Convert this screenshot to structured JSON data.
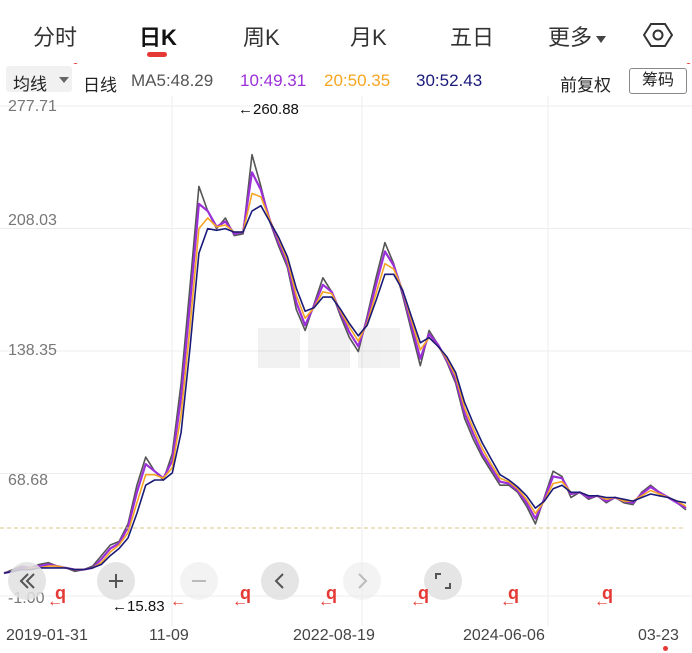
{
  "tabs": [
    {
      "label": "分时"
    },
    {
      "label": "日K"
    },
    {
      "label": "周K"
    },
    {
      "label": "月K"
    },
    {
      "label": "五日"
    },
    {
      "label": "更多"
    }
  ],
  "active_tab": "日K",
  "ma_bar": {
    "avg_label": "均线",
    "period": "日线",
    "ma5": "MA5:48.29",
    "ma10": "10:49.31",
    "ma20": "20:50.35",
    "ma30": "30:52.43",
    "adjust": "前复权",
    "chip": "筹码"
  },
  "colors": {
    "ma5": "#555555",
    "ma10": "#9b30d9",
    "ma20": "#f5a623",
    "ma30": "#1a1a7a",
    "price": "#222222",
    "accent": "#e53935"
  },
  "price_axis": [
    "277.71",
    "208.03",
    "138.35",
    "68.68",
    "-1.00"
  ],
  "annotations": {
    "high": "←260.88",
    "low": "←15.83"
  },
  "marker_glyph": "q",
  "dates": [
    "2019-01-31",
    "11-09",
    "2022-08-19",
    "2024-06-06",
    "03-23"
  ],
  "chart_data": {
    "type": "line",
    "ylim": [
      -1.0,
      277.71
    ],
    "y_ticks": [
      277.71,
      208.03,
      138.35,
      68.68,
      -1.0
    ],
    "x_tick_labels": [
      "2019-01-31",
      "11-09",
      "2022-08-19",
      "2024-06-06",
      "03-23"
    ],
    "high_marker": 260.88,
    "low_marker": 15.83,
    "series": [
      {
        "name": "MA5",
        "values": [
          12,
          14,
          16,
          15,
          17,
          18,
          16,
          15,
          13,
          14,
          16,
          22,
          28,
          30,
          40,
          62,
          78,
          70,
          65,
          80,
          120,
          175,
          232,
          218,
          208,
          214,
          204,
          205,
          250,
          232,
          212,
          198,
          186,
          162,
          150,
          165,
          180,
          172,
          158,
          146,
          138,
          158,
          180,
          200,
          188,
          170,
          150,
          130,
          150,
          142,
          132,
          120,
          100,
          88,
          78,
          70,
          62,
          62,
          58,
          50,
          40,
          55,
          70,
          67,
          55,
          58,
          54,
          56,
          52,
          55,
          52,
          51,
          58,
          62,
          58,
          55,
          52,
          48
        ]
      },
      {
        "name": "MA10",
        "values": [
          12,
          13,
          15,
          15,
          16,
          17,
          16,
          15,
          14,
          14,
          15,
          20,
          26,
          29,
          38,
          58,
          74,
          70,
          66,
          76,
          112,
          165,
          222,
          218,
          209,
          212,
          205,
          206,
          240,
          230,
          213,
          200,
          188,
          166,
          153,
          164,
          176,
          172,
          160,
          149,
          141,
          156,
          176,
          195,
          187,
          172,
          153,
          134,
          148,
          142,
          133,
          122,
          103,
          91,
          80,
          72,
          64,
          63,
          59,
          52,
          43,
          54,
          67,
          66,
          57,
          58,
          55,
          56,
          53,
          55,
          53,
          52,
          57,
          61,
          58,
          55,
          52,
          49
        ]
      },
      {
        "name": "MA20",
        "values": [
          12,
          13,
          14,
          15,
          15,
          16,
          16,
          15,
          14,
          14,
          15,
          18,
          24,
          28,
          35,
          52,
          68,
          68,
          66,
          72,
          102,
          152,
          208,
          214,
          209,
          210,
          206,
          206,
          228,
          226,
          213,
          202,
          190,
          170,
          157,
          163,
          172,
          171,
          161,
          152,
          144,
          154,
          171,
          188,
          185,
          173,
          156,
          139,
          146,
          141,
          134,
          124,
          106,
          94,
          83,
          74,
          66,
          64,
          60,
          54,
          46,
          53,
          63,
          64,
          58,
          58,
          56,
          56,
          54,
          55,
          53,
          53,
          56,
          59,
          57,
          55,
          53,
          50
        ]
      },
      {
        "name": "MA30",
        "values": [
          12,
          13,
          14,
          14,
          15,
          15,
          15,
          15,
          14,
          14,
          15,
          17,
          22,
          26,
          32,
          46,
          62,
          65,
          65,
          69,
          92,
          140,
          194,
          208,
          207,
          208,
          206,
          206,
          218,
          221,
          212,
          203,
          192,
          174,
          161,
          163,
          169,
          169,
          162,
          154,
          147,
          153,
          167,
          182,
          182,
          173,
          158,
          143,
          146,
          141,
          135,
          126,
          109,
          97,
          86,
          77,
          68,
          65,
          61,
          56,
          49,
          53,
          60,
          62,
          58,
          58,
          56,
          56,
          55,
          55,
          54,
          53,
          55,
          57,
          56,
          55,
          53,
          52
        ]
      }
    ]
  }
}
